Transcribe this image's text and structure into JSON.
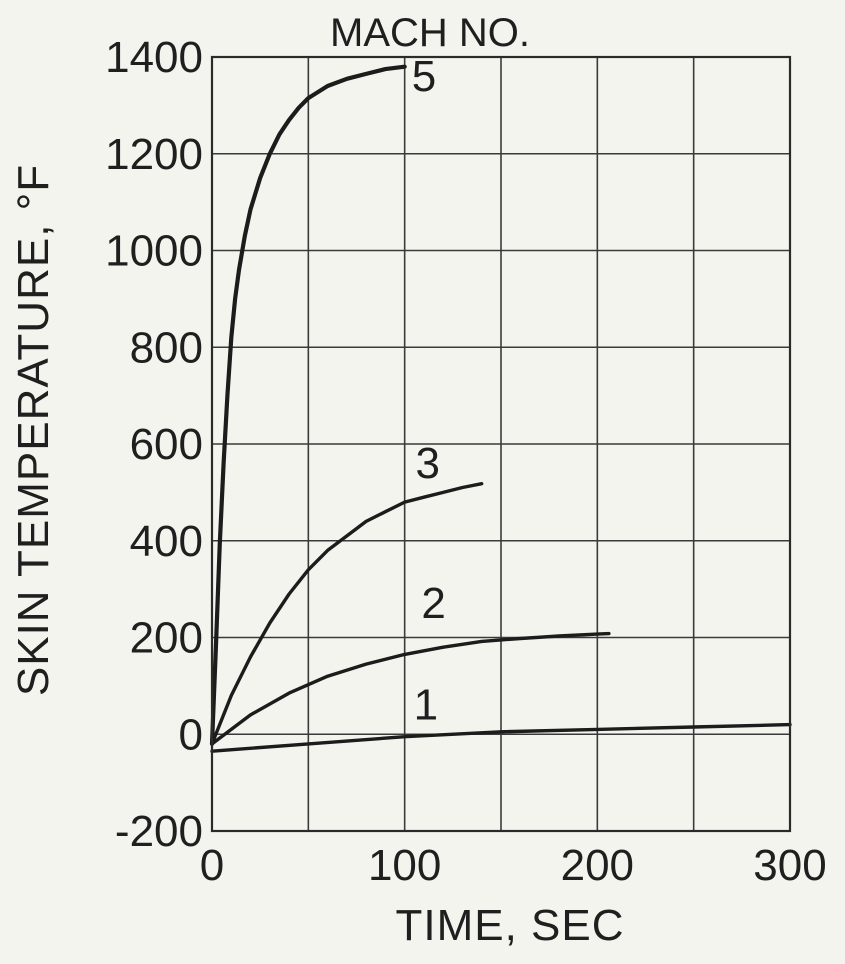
{
  "chart_data": {
    "type": "line",
    "header": "MACH NO.",
    "xlabel": "TIME, SEC",
    "ylabel": "SKIN TEMPERATURE, °F",
    "xlim": [
      0,
      300
    ],
    "ylim": [
      -200,
      1400
    ],
    "x_ticks": [
      0,
      100,
      200,
      300
    ],
    "x_tick_labels": [
      "0",
      "100",
      "200",
      "300"
    ],
    "y_ticks": [
      -200,
      0,
      200,
      400,
      600,
      800,
      1000,
      1200,
      1400
    ],
    "y_tick_labels": [
      "-200",
      "0",
      "200",
      "400",
      "600",
      "800",
      "1000",
      "1200",
      "1400"
    ],
    "grid": true,
    "series": [
      {
        "name": "5",
        "x": [
          0,
          2,
          4,
          6,
          8,
          10,
          12,
          14,
          17,
          20,
          25,
          30,
          35,
          40,
          45,
          50,
          60,
          70,
          80,
          90,
          100
        ],
        "y": [
          -20,
          180,
          390,
          560,
          700,
          820,
          900,
          960,
          1030,
          1085,
          1150,
          1200,
          1240,
          1270,
          1295,
          1315,
          1340,
          1355,
          1365,
          1375,
          1380
        ]
      },
      {
        "name": "3",
        "x": [
          0,
          10,
          20,
          30,
          40,
          50,
          60,
          70,
          80,
          90,
          100,
          110,
          120,
          130,
          140
        ],
        "y": [
          -20,
          80,
          160,
          230,
          290,
          340,
          380,
          410,
          440,
          460,
          480,
          490,
          500,
          510,
          518
        ]
      },
      {
        "name": "2",
        "x": [
          0,
          20,
          40,
          60,
          80,
          100,
          120,
          140,
          160,
          180,
          200,
          206
        ],
        "y": [
          -20,
          40,
          85,
          120,
          145,
          165,
          180,
          192,
          198,
          203,
          207,
          208
        ]
      },
      {
        "name": "1",
        "x": [
          0,
          50,
          100,
          150,
          200,
          250,
          300
        ],
        "y": [
          -35,
          -20,
          -5,
          5,
          10,
          15,
          20
        ]
      }
    ],
    "series_label_positions": [
      {
        "name": "5",
        "x": 110,
        "y": 1330
      },
      {
        "name": "3",
        "x": 112,
        "y": 530
      },
      {
        "name": "2",
        "x": 115,
        "y": 240
      },
      {
        "name": "1",
        "x": 111,
        "y": 30
      }
    ]
  }
}
